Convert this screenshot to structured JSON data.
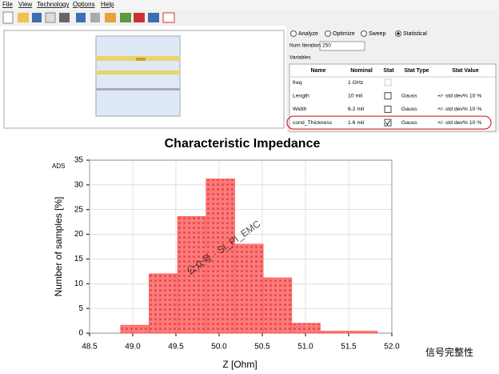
{
  "menu": [
    "File",
    "View",
    "Technology",
    "Options",
    "Help"
  ],
  "options": {
    "modes": [
      "Analyze",
      "Optimize",
      "Sweep",
      "Statistical"
    ],
    "selected": "Statistical"
  },
  "num_iteration_label": "Num Iteration",
  "num_iteration": 250,
  "variables_label": "Variables",
  "table": {
    "columns": [
      "Name",
      "Nominal",
      "Stat",
      "Stat Type",
      "Stat Value"
    ],
    "rows": [
      {
        "name": "freq",
        "nominal": "1 GHz",
        "stat": null
      },
      {
        "name": "Length",
        "nominal": "10 mil",
        "stat": false,
        "stat_type": "Gauss",
        "stat_value": "+/- std dev%  10 %"
      },
      {
        "name": "Width",
        "nominal": "6.2 mil",
        "stat": false,
        "stat_type": "Gauss",
        "stat_value": "+/- std dev%  10 %"
      },
      {
        "name": "cond_Thickness",
        "nominal": "1.6 mil",
        "stat": true,
        "stat_type": "Gauss",
        "stat_value": "+/- std dev%  10 %"
      }
    ],
    "highlight_row": 3
  },
  "watermarks": [
    "公众号 · SI_PI_EMC",
    "信号完整性"
  ],
  "chart_data": {
    "type": "histogram",
    "title": "Characteristic Impedance",
    "xlabel": "Z [Ohm]",
    "ylabel": "Number of samples [%]",
    "tag": "ADS",
    "bins": [
      48.86,
      49.19,
      49.52,
      49.85,
      50.18,
      50.51,
      50.84,
      51.17,
      51.5,
      51.83
    ],
    "values": [
      1.6,
      12,
      23.6,
      31.2,
      18,
      11.2,
      2,
      0.4,
      0.4
    ],
    "color": "#ff5a5a",
    "xlim": [
      48.5,
      52.0
    ],
    "ylim": [
      0,
      35
    ],
    "xticks": [
      48.5,
      {
        "value": 49.0,
        "label": "49.0"
      },
      49.5,
      {
        "value": 50.0,
        "label": "50.0"
      },
      50.5,
      {
        "value": 51.0,
        "label": "51.0"
      },
      51.5,
      {
        "value": 52.0,
        "label": "52.0"
      }
    ],
    "yticks": [
      0,
      5,
      10,
      15,
      20,
      25,
      30,
      35
    ],
    "grid": true
  }
}
